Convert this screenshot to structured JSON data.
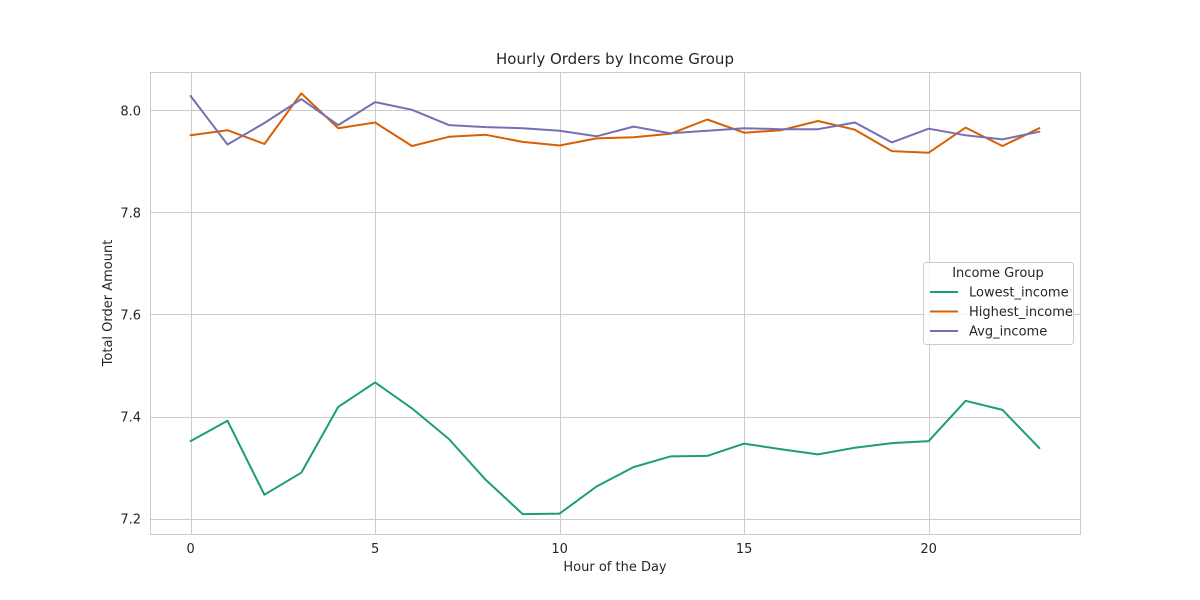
{
  "chart_data": {
    "type": "line",
    "title": "Hourly Orders by Income Group",
    "xlabel": "Hour of the Day",
    "ylabel": "Total Order Amount",
    "xlim": [
      -1.1,
      24.1
    ],
    "ylim": [
      7.17,
      8.075
    ],
    "xticks": [
      0,
      5,
      10,
      15,
      20
    ],
    "xtick_labels": [
      "0",
      "5",
      "10",
      "15",
      "20"
    ],
    "yticks": [
      7.2,
      7.4,
      7.6,
      7.8,
      8.0
    ],
    "ytick_labels": [
      "7.2",
      "7.4",
      "7.6",
      "7.8",
      "8.0"
    ],
    "grid": true,
    "legend": {
      "title": "Income Group",
      "placement": "center-right"
    },
    "x": [
      0,
      1,
      2,
      3,
      4,
      5,
      6,
      7,
      8,
      9,
      10,
      11,
      12,
      13,
      14,
      15,
      16,
      17,
      18,
      19,
      20,
      21,
      22,
      23
    ],
    "series": [
      {
        "name": "Lowest_income",
        "color": "#1b9e77",
        "values": [
          7.352,
          7.392,
          7.247,
          7.29,
          7.419,
          7.467,
          7.416,
          7.356,
          7.276,
          7.209,
          7.21,
          7.263,
          7.301,
          7.322,
          7.323,
          7.347,
          7.336,
          7.326,
          7.339,
          7.348,
          7.352,
          7.431,
          7.413,
          7.338
        ]
      },
      {
        "name": "Highest_income",
        "color": "#d95f02",
        "values": [
          7.951,
          7.961,
          7.934,
          8.033,
          7.965,
          7.976,
          7.93,
          7.948,
          7.952,
          7.938,
          7.931,
          7.945,
          7.947,
          7.954,
          7.982,
          7.956,
          7.961,
          7.979,
          7.962,
          7.92,
          7.917,
          7.966,
          7.93,
          7.965
        ]
      },
      {
        "name": "Avg_income",
        "color": "#7570b3",
        "values": [
          8.028,
          7.933,
          7.975,
          8.022,
          7.971,
          8.016,
          8.001,
          7.971,
          7.967,
          7.965,
          7.96,
          7.949,
          7.968,
          7.955,
          7.96,
          7.965,
          7.963,
          7.963,
          7.976,
          7.937,
          7.964,
          7.951,
          7.943,
          7.958
        ]
      }
    ]
  }
}
